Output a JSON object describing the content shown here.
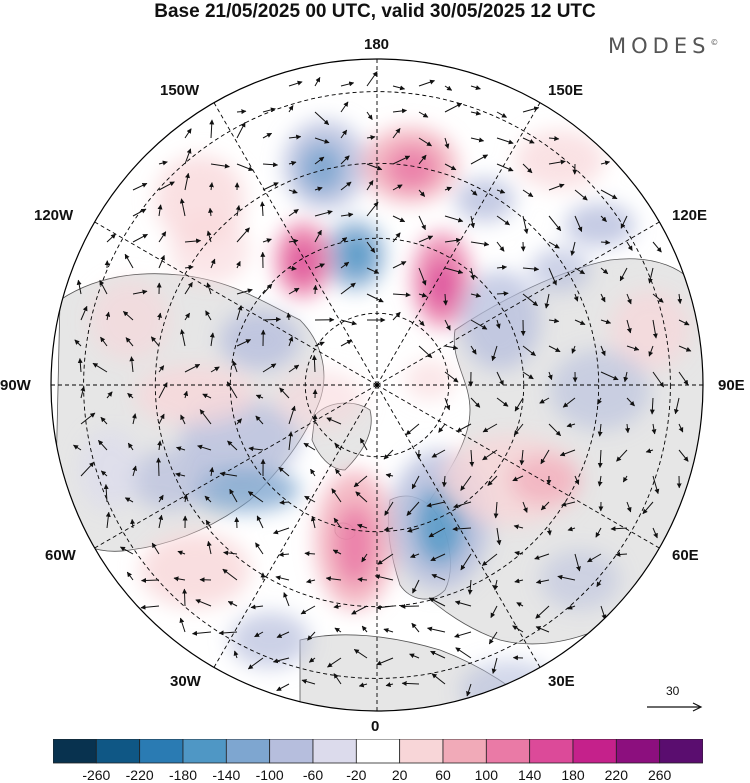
{
  "title": "Base 21/05/2025 00 UTC, valid 30/05/2025 12 UTC",
  "logo": "MODES",
  "logo_mark": "©",
  "longitude_labels": [
    "180",
    "150E",
    "120E",
    "90E",
    "60E",
    "30E",
    "0",
    "30W",
    "60W",
    "90W",
    "120W",
    "150W"
  ],
  "reference_vector": "30",
  "colorbar": {
    "labels": [
      "-260",
      "-220",
      "-180",
      "-140",
      "-100",
      "-60",
      "-20",
      "20",
      "60",
      "100",
      "140",
      "180",
      "220",
      "260"
    ],
    "colors": [
      "#08324f",
      "#0f5785",
      "#2a7bb3",
      "#4f97c5",
      "#7ea6d0",
      "#b6bedd",
      "#dcdbec",
      "#ffffff",
      "#f8d6d8",
      "#f1aab8",
      "#ea7aa6",
      "#dc4a99",
      "#c5218b",
      "#8c0f7e",
      "#5a0d6f"
    ]
  },
  "colors": {
    "land": "#e6e6e6",
    "ocean": "#ffffff",
    "coastline": "#333333",
    "grid": "#000000"
  }
}
